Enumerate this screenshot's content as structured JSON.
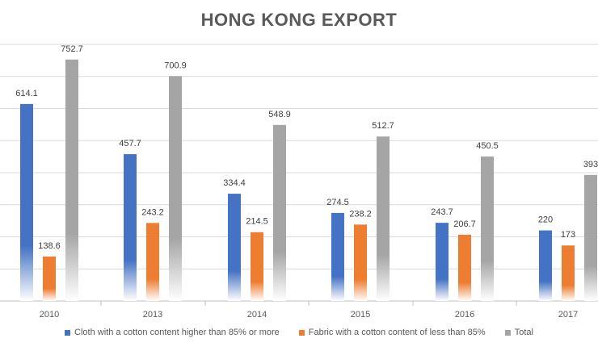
{
  "chart_data": {
    "type": "bar",
    "title": "HONG KONG EXPORT",
    "xlabel": "",
    "ylabel": "",
    "ylim": [
      0,
      800
    ],
    "categories": [
      "2010",
      "2013",
      "2014",
      "2015",
      "2016",
      "2017"
    ],
    "series": [
      {
        "name": "Cloth with a cotton content higher than 85% or more",
        "color": "#4472C4",
        "values": [
          614.1,
          457.7,
          334.4,
          274.5,
          243.7,
          220
        ],
        "labels": [
          "614.1",
          "457.7",
          "334.4",
          "274.5",
          "243.7",
          "220"
        ]
      },
      {
        "name": "Fabric with a cotton content of less than 85%",
        "color": "#ED7D31",
        "values": [
          138.6,
          243.2,
          214.5,
          238.2,
          206.7,
          173
        ],
        "labels": [
          "138.6",
          "243.2",
          "214.5",
          "238.2",
          "206.7",
          "173"
        ]
      },
      {
        "name": "Total",
        "color": "#A5A5A5",
        "values": [
          752.7,
          700.9,
          548.9,
          512.7,
          450.5,
          393
        ],
        "labels": [
          "752.7",
          "700.9",
          "548.9",
          "512.7",
          "450.5",
          "393"
        ]
      }
    ],
    "grid": true,
    "legend": "bottom"
  }
}
